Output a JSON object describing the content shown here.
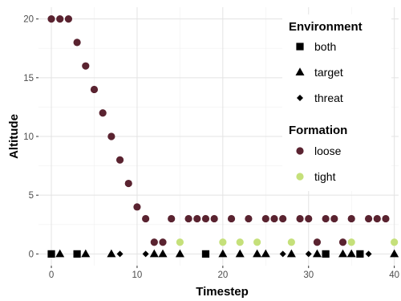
{
  "chart_data": {
    "type": "scatter",
    "xlabel": "Timestep",
    "ylabel": "Altitude",
    "xlim": [
      -1.5,
      40.5
    ],
    "ylim": [
      -1.0,
      21.0
    ],
    "x_ticks": [
      0,
      10,
      20,
      30,
      40
    ],
    "y_ticks": [
      0,
      5,
      10,
      15,
      20
    ],
    "grid": true,
    "legend_position": "top-right",
    "legend": {
      "environment": {
        "title": "Environment",
        "items": [
          {
            "label": "both",
            "shape": "square"
          },
          {
            "label": "target",
            "shape": "triangle"
          },
          {
            "label": "threat",
            "shape": "diamond"
          }
        ]
      },
      "formation": {
        "title": "Formation",
        "items": [
          {
            "label": "loose",
            "color": "#5a2330"
          },
          {
            "label": "tight",
            "color": "#c5e07a"
          }
        ]
      }
    },
    "series": [
      {
        "name": "loose",
        "shape": "circle",
        "color": "#5a2330",
        "points": [
          [
            0,
            20
          ],
          [
            1,
            20
          ],
          [
            2,
            20
          ],
          [
            3,
            18
          ],
          [
            4,
            16
          ],
          [
            5,
            14
          ],
          [
            6,
            12
          ],
          [
            7,
            10
          ],
          [
            8,
            8
          ],
          [
            9,
            6
          ],
          [
            10,
            4
          ],
          [
            11,
            3
          ],
          [
            12,
            1
          ],
          [
            13,
            1
          ],
          [
            14,
            3
          ],
          [
            16,
            3
          ],
          [
            17,
            3
          ],
          [
            18,
            3
          ],
          [
            19,
            3
          ],
          [
            21,
            3
          ],
          [
            23,
            3
          ],
          [
            25,
            3
          ],
          [
            26,
            3
          ],
          [
            27,
            3
          ],
          [
            29,
            3
          ],
          [
            30,
            3
          ],
          [
            31,
            1
          ],
          [
            32,
            3
          ],
          [
            33,
            3
          ],
          [
            34,
            1
          ],
          [
            35,
            3
          ],
          [
            37,
            3
          ],
          [
            38,
            3
          ],
          [
            39,
            3
          ]
        ]
      },
      {
        "name": "tight",
        "shape": "circle",
        "color": "#c5e07a",
        "points": [
          [
            15,
            1
          ],
          [
            20,
            1
          ],
          [
            22,
            1
          ],
          [
            24,
            1
          ],
          [
            28,
            1
          ],
          [
            35,
            1
          ],
          [
            40,
            1
          ]
        ]
      },
      {
        "name": "both",
        "shape": "square",
        "color": "#000000",
        "points": [
          [
            0,
            0
          ],
          [
            3,
            0
          ],
          [
            18,
            0
          ],
          [
            32,
            0
          ],
          [
            36,
            0
          ]
        ]
      },
      {
        "name": "target",
        "shape": "triangle",
        "color": "#000000",
        "points": [
          [
            1,
            0
          ],
          [
            4,
            0
          ],
          [
            7,
            0
          ],
          [
            12,
            0
          ],
          [
            13,
            0
          ],
          [
            15,
            0
          ],
          [
            20,
            0
          ],
          [
            22,
            0
          ],
          [
            24,
            0
          ],
          [
            25,
            0
          ],
          [
            28,
            0
          ],
          [
            31,
            0
          ],
          [
            34,
            0
          ],
          [
            35,
            0
          ],
          [
            40,
            0
          ]
        ]
      },
      {
        "name": "threat",
        "shape": "diamond",
        "color": "#000000",
        "points": [
          [
            8,
            0
          ],
          [
            11,
            0
          ],
          [
            27,
            0
          ],
          [
            30,
            0
          ],
          [
            37,
            0
          ]
        ]
      }
    ]
  }
}
